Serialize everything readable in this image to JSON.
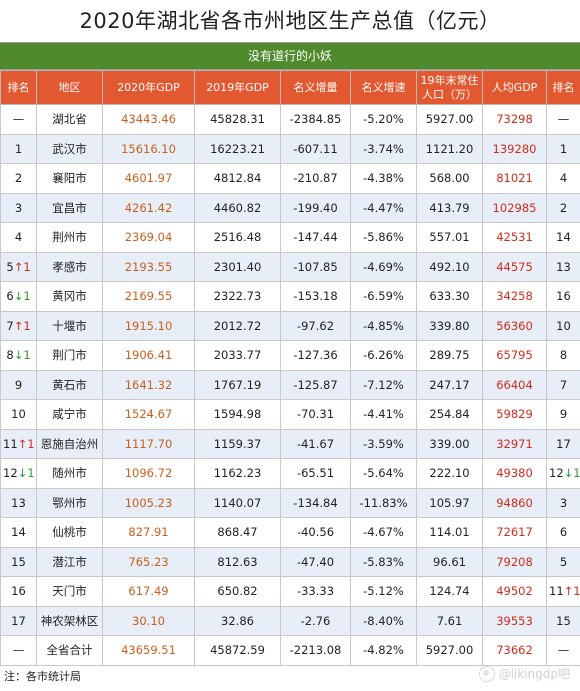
{
  "title": "2020年湖北省各市州地区生产总值（亿元）",
  "subtitle": "没有道行的小妖",
  "headers": [
    "排名",
    "地区",
    "2020年GDP",
    "2019年GDP",
    "名义增量",
    "名义增速",
    "19年末常住人口（万）",
    "人均GDP",
    "排名"
  ],
  "rows": [
    {
      "rank": "—",
      "arrow": "",
      "region": "湖北省",
      "gdp2020": "43443.46",
      "gdp2019": "45828.31",
      "increase": "-2384.85",
      "rate": "-5.20%",
      "population": "5927.00",
      "per_capita": "73298",
      "pc_rank": "—",
      "pc_arrow": ""
    },
    {
      "rank": "1",
      "arrow": "",
      "region": "武汉市",
      "gdp2020": "15616.10",
      "gdp2019": "16223.21",
      "increase": "-607.11",
      "rate": "-3.74%",
      "population": "1121.20",
      "per_capita": "139280",
      "pc_rank": "1",
      "pc_arrow": ""
    },
    {
      "rank": "2",
      "arrow": "",
      "region": "襄阳市",
      "gdp2020": "4601.97",
      "gdp2019": "4812.84",
      "increase": "-210.87",
      "rate": "-4.38%",
      "population": "568.00",
      "per_capita": "81021",
      "pc_rank": "4",
      "pc_arrow": ""
    },
    {
      "rank": "3",
      "arrow": "",
      "region": "宜昌市",
      "gdp2020": "4261.42",
      "gdp2019": "4460.82",
      "increase": "-199.40",
      "rate": "-4.47%",
      "population": "413.79",
      "per_capita": "102985",
      "pc_rank": "2",
      "pc_arrow": ""
    },
    {
      "rank": "4",
      "arrow": "",
      "region": "荆州市",
      "gdp2020": "2369.04",
      "gdp2019": "2516.48",
      "increase": "-147.44",
      "rate": "-5.86%",
      "population": "557.01",
      "per_capita": "42531",
      "pc_rank": "14",
      "pc_arrow": ""
    },
    {
      "rank": "5",
      "arrow": "↑1",
      "region": "孝感市",
      "gdp2020": "2193.55",
      "gdp2019": "2301.40",
      "increase": "-107.85",
      "rate": "-4.69%",
      "population": "492.10",
      "per_capita": "44575",
      "pc_rank": "13",
      "pc_arrow": ""
    },
    {
      "rank": "6",
      "arrow": "↓1",
      "region": "黄冈市",
      "gdp2020": "2169.55",
      "gdp2019": "2322.73",
      "increase": "-153.18",
      "rate": "-6.59%",
      "population": "633.30",
      "per_capita": "34258",
      "pc_rank": "16",
      "pc_arrow": ""
    },
    {
      "rank": "7",
      "arrow": "↑1",
      "region": "十堰市",
      "gdp2020": "1915.10",
      "gdp2019": "2012.72",
      "increase": "-97.62",
      "rate": "-4.85%",
      "population": "339.80",
      "per_capita": "56360",
      "pc_rank": "10",
      "pc_arrow": ""
    },
    {
      "rank": "8",
      "arrow": "↓1",
      "region": "荆门市",
      "gdp2020": "1906.41",
      "gdp2019": "2033.77",
      "increase": "-127.36",
      "rate": "-6.26%",
      "population": "289.75",
      "per_capita": "65795",
      "pc_rank": "8",
      "pc_arrow": ""
    },
    {
      "rank": "9",
      "arrow": "",
      "region": "黄石市",
      "gdp2020": "1641.32",
      "gdp2019": "1767.19",
      "increase": "-125.87",
      "rate": "-7.12%",
      "population": "247.17",
      "per_capita": "66404",
      "pc_rank": "7",
      "pc_arrow": ""
    },
    {
      "rank": "10",
      "arrow": "",
      "region": "咸宁市",
      "gdp2020": "1524.67",
      "gdp2019": "1594.98",
      "increase": "-70.31",
      "rate": "-4.41%",
      "population": "254.84",
      "per_capita": "59829",
      "pc_rank": "9",
      "pc_arrow": ""
    },
    {
      "rank": "11",
      "arrow": "↑1",
      "region": "恩施自治州",
      "gdp2020": "1117.70",
      "gdp2019": "1159.37",
      "increase": "-41.67",
      "rate": "-3.59%",
      "population": "339.00",
      "per_capita": "32971",
      "pc_rank": "17",
      "pc_arrow": ""
    },
    {
      "rank": "12",
      "arrow": "↓1",
      "region": "随州市",
      "gdp2020": "1096.72",
      "gdp2019": "1162.23",
      "increase": "-65.51",
      "rate": "-5.64%",
      "population": "222.10",
      "per_capita": "49380",
      "pc_rank": "12",
      "pc_arrow": "↓1"
    },
    {
      "rank": "13",
      "arrow": "",
      "region": "鄂州市",
      "gdp2020": "1005.23",
      "gdp2019": "1140.07",
      "increase": "-134.84",
      "rate": "-11.83%",
      "population": "105.97",
      "per_capita": "94860",
      "pc_rank": "3",
      "pc_arrow": ""
    },
    {
      "rank": "14",
      "arrow": "",
      "region": "仙桃市",
      "gdp2020": "827.91",
      "gdp2019": "868.47",
      "increase": "-40.56",
      "rate": "-4.67%",
      "population": "114.01",
      "per_capita": "72617",
      "pc_rank": "6",
      "pc_arrow": ""
    },
    {
      "rank": "15",
      "arrow": "",
      "region": "潜江市",
      "gdp2020": "765.23",
      "gdp2019": "812.63",
      "increase": "-47.40",
      "rate": "-5.83%",
      "population": "96.61",
      "per_capita": "79208",
      "pc_rank": "5",
      "pc_arrow": ""
    },
    {
      "rank": "16",
      "arrow": "",
      "region": "天门市",
      "gdp2020": "617.49",
      "gdp2019": "650.82",
      "increase": "-33.33",
      "rate": "-5.12%",
      "population": "124.74",
      "per_capita": "49502",
      "pc_rank": "11",
      "pc_arrow": "↑1"
    },
    {
      "rank": "17",
      "arrow": "",
      "region": "神农架林区",
      "gdp2020": "30.10",
      "gdp2019": "32.86",
      "increase": "-2.76",
      "rate": "-8.40%",
      "population": "7.61",
      "per_capita": "39553",
      "pc_rank": "15",
      "pc_arrow": ""
    },
    {
      "rank": "—",
      "arrow": "",
      "region": "全省合计",
      "gdp2020": "43659.51",
      "gdp2019": "45872.59",
      "increase": "-2213.08",
      "rate": "-4.82%",
      "population": "5927.00",
      "per_capita": "73662",
      "pc_rank": "—",
      "pc_arrow": ""
    }
  ],
  "footnote": "注：各市统计局",
  "watermark": "@likingdp吧",
  "colors": {
    "header_bg": "#e25830",
    "subtitle_bg": "#4f8a2c",
    "row_alt": "#e8eef7",
    "gdp_text": "#c95f1e",
    "per_capita_text": "#d02c1c",
    "up_arrow": "#d0301c",
    "down_arrow": "#2e9a3a"
  }
}
